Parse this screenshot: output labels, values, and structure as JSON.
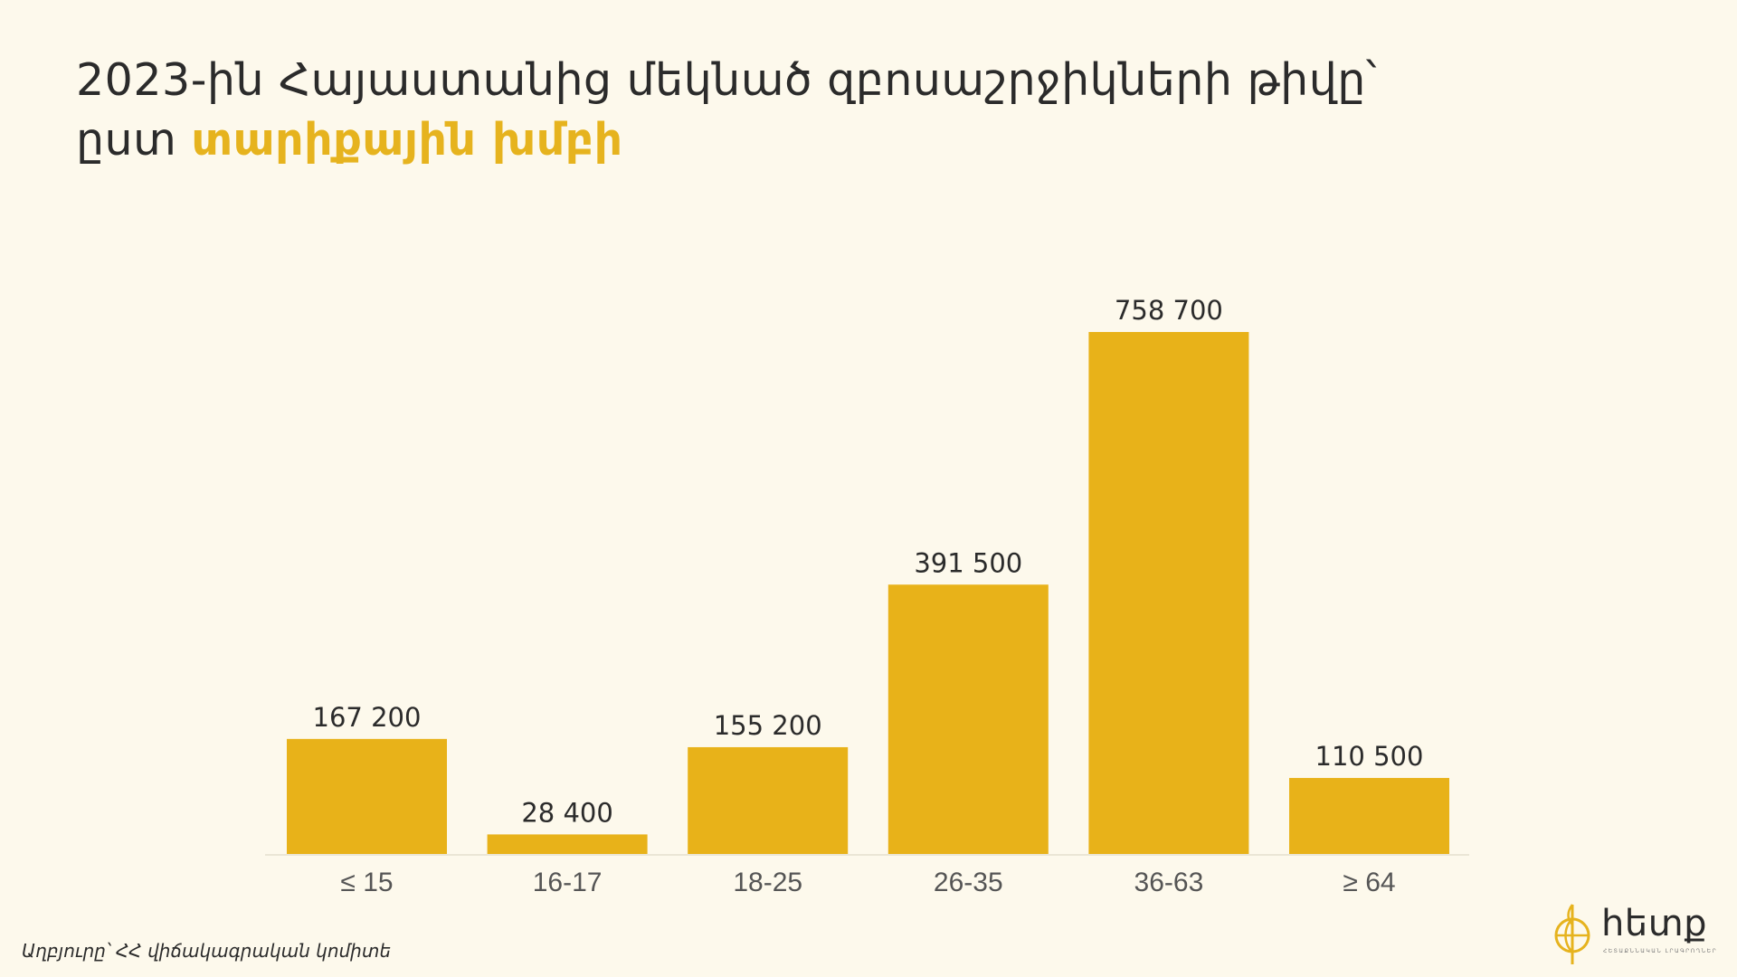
{
  "title": {
    "line1": "2023-ին Հայաստանից մեկնած զբոսաշրջիկների թիվը՝",
    "line2_prefix": "ըստ",
    "line2_highlight": "տարիքային խմբի"
  },
  "colors": {
    "background": "#fdf9ec",
    "bar": "#e8b219",
    "highlight": "#e6b31e",
    "text": "#2b2b2b",
    "axis": "#ebe6d6"
  },
  "chart_data": {
    "type": "bar",
    "categories": [
      "≤ 15",
      "16-17",
      "18-25",
      "26-35",
      "36-63",
      "≥ 64"
    ],
    "values": [
      167200,
      28400,
      155200,
      391500,
      758700,
      110500
    ],
    "value_labels": [
      "167 200",
      "28 400",
      "155 200",
      "391 500",
      "758 700",
      "110 500"
    ],
    "title": "2023-ին Հայաստանից մեկնած զբոսաշրջիկների թիվը՝ ըստ տարիքային խմբի",
    "xlabel": "",
    "ylabel": "",
    "ylim": [
      0,
      760000
    ],
    "grid": false,
    "legend": "none"
  },
  "source": "Աղբյուրը՝ ՀՀ վիճակագրական կոմիտե",
  "logo": {
    "icon": "globe-pin-icon",
    "text": "հետք",
    "tagline": "ՀԵՏԱՔՆՆԱԿԱՆ ԼՐԱԳՐՈՂՆԵՐ"
  }
}
